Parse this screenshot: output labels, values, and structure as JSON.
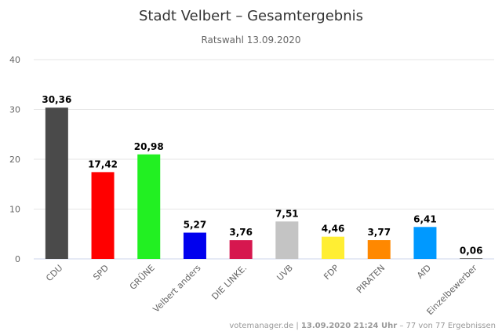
{
  "chart_data": {
    "type": "bar",
    "title": "Stadt Velbert – Gesamtergebnis",
    "subtitle": "Ratswahl 13.09.2020",
    "categories": [
      "CDU",
      "SPD",
      "GRÜNE",
      "Velbert anders",
      "DIE LINKE.",
      "UVB",
      "FDP",
      "PIRATEN",
      "AfD",
      "Einzelbewerber"
    ],
    "values": [
      30.36,
      17.42,
      20.98,
      5.27,
      3.76,
      7.51,
      4.46,
      3.77,
      6.41,
      0.06
    ],
    "value_labels": [
      "30,36",
      "17,42",
      "20,98",
      "5,27",
      "3,76",
      "7,51",
      "4,46",
      "3,77",
      "6,41",
      "0,06"
    ],
    "colors": [
      "#4a4a4a",
      "#ff0000",
      "#22f022",
      "#0000ee",
      "#d6174f",
      "#c4c4c4",
      "#ffee33",
      "#ff8800",
      "#0099ff",
      "#000000"
    ],
    "ylim": [
      0,
      40
    ],
    "yticks": [
      "0",
      "10",
      "20",
      "30",
      "40"
    ],
    "grid": true,
    "xlabel": "",
    "ylabel": ""
  },
  "credits": {
    "source": "votemanager.de",
    "separator": " | ",
    "timestamp": "13.09.2020 21:24 Uhr",
    "rest": " – 77 von 77 Ergebnissen"
  }
}
